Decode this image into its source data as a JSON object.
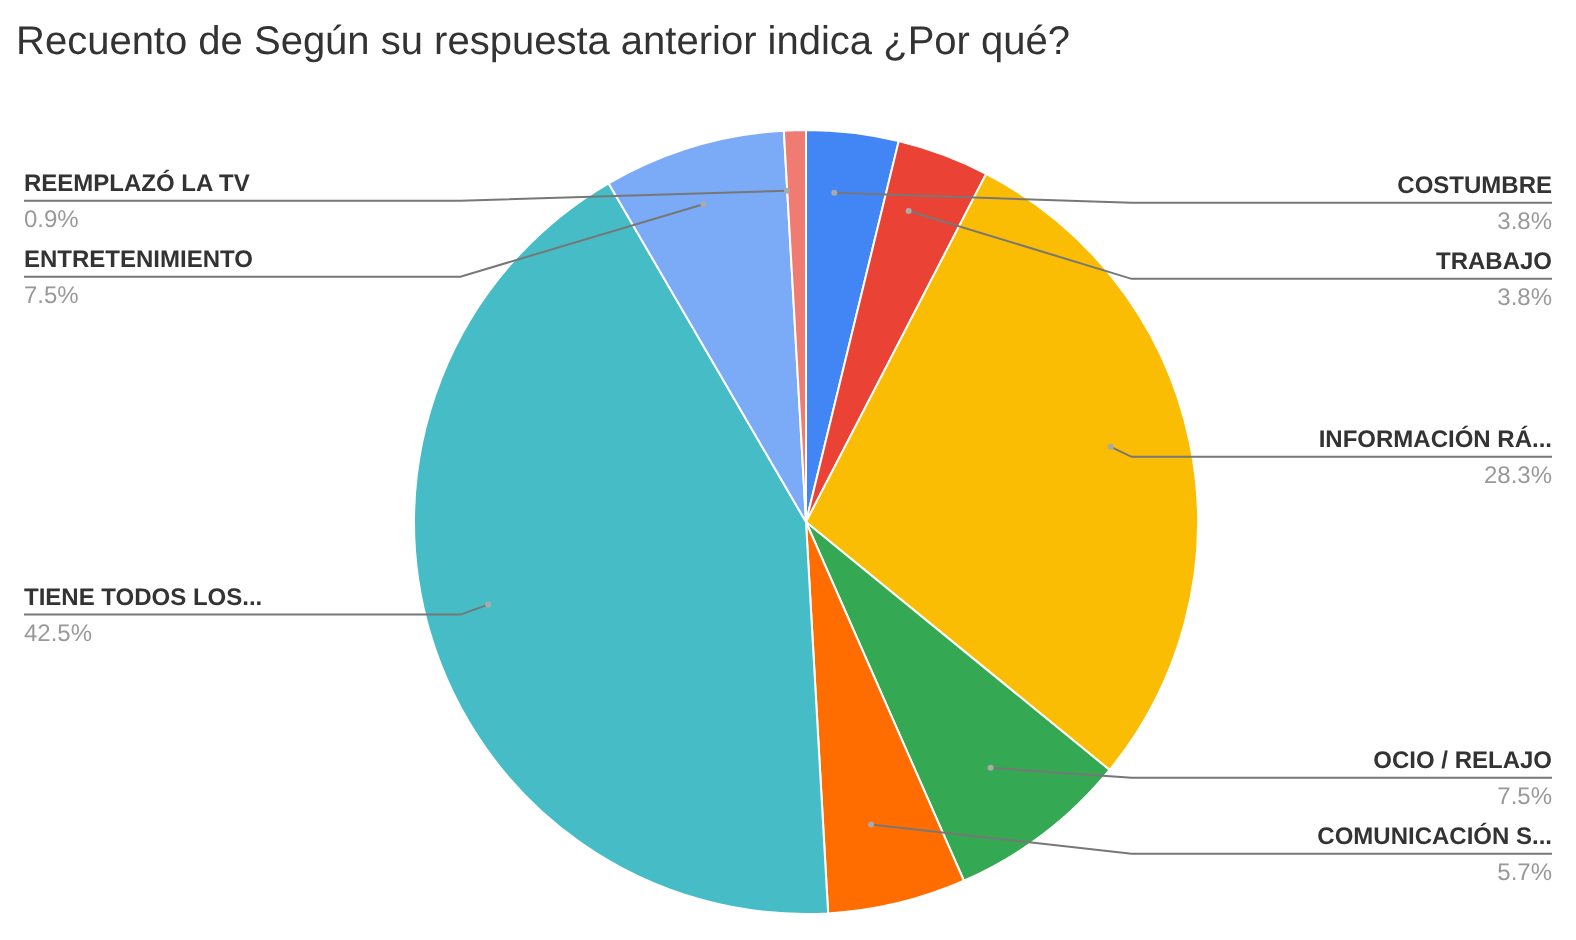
{
  "chart_data": {
    "type": "pie",
    "title": "Recuento de Según su respuesta anterior indica ¿Por qué?",
    "categories": [
      "COSTUMBRE",
      "TRABAJO",
      "INFORMACIÓN RÁ...",
      "OCIO / RELAJO",
      "COMUNICACIÓN S...",
      "TIENE TODOS LOS...",
      "ENTRETENIMIENTO",
      "REEMPLAZÓ LA TV"
    ],
    "values": [
      3.8,
      3.8,
      28.3,
      7.5,
      5.7,
      42.5,
      7.5,
      0.9
    ],
    "value_labels": [
      "3.8%",
      "3.8%",
      "28.3%",
      "7.5%",
      "5.7%",
      "42.5%",
      "7.5%",
      "0.9%"
    ],
    "colors": [
      "#4285f4",
      "#ea4335",
      "#fbbc04",
      "#34a853",
      "#ff6d01",
      "#46bdc6",
      "#7baaf7",
      "#f07b72"
    ],
    "legend": false
  }
}
